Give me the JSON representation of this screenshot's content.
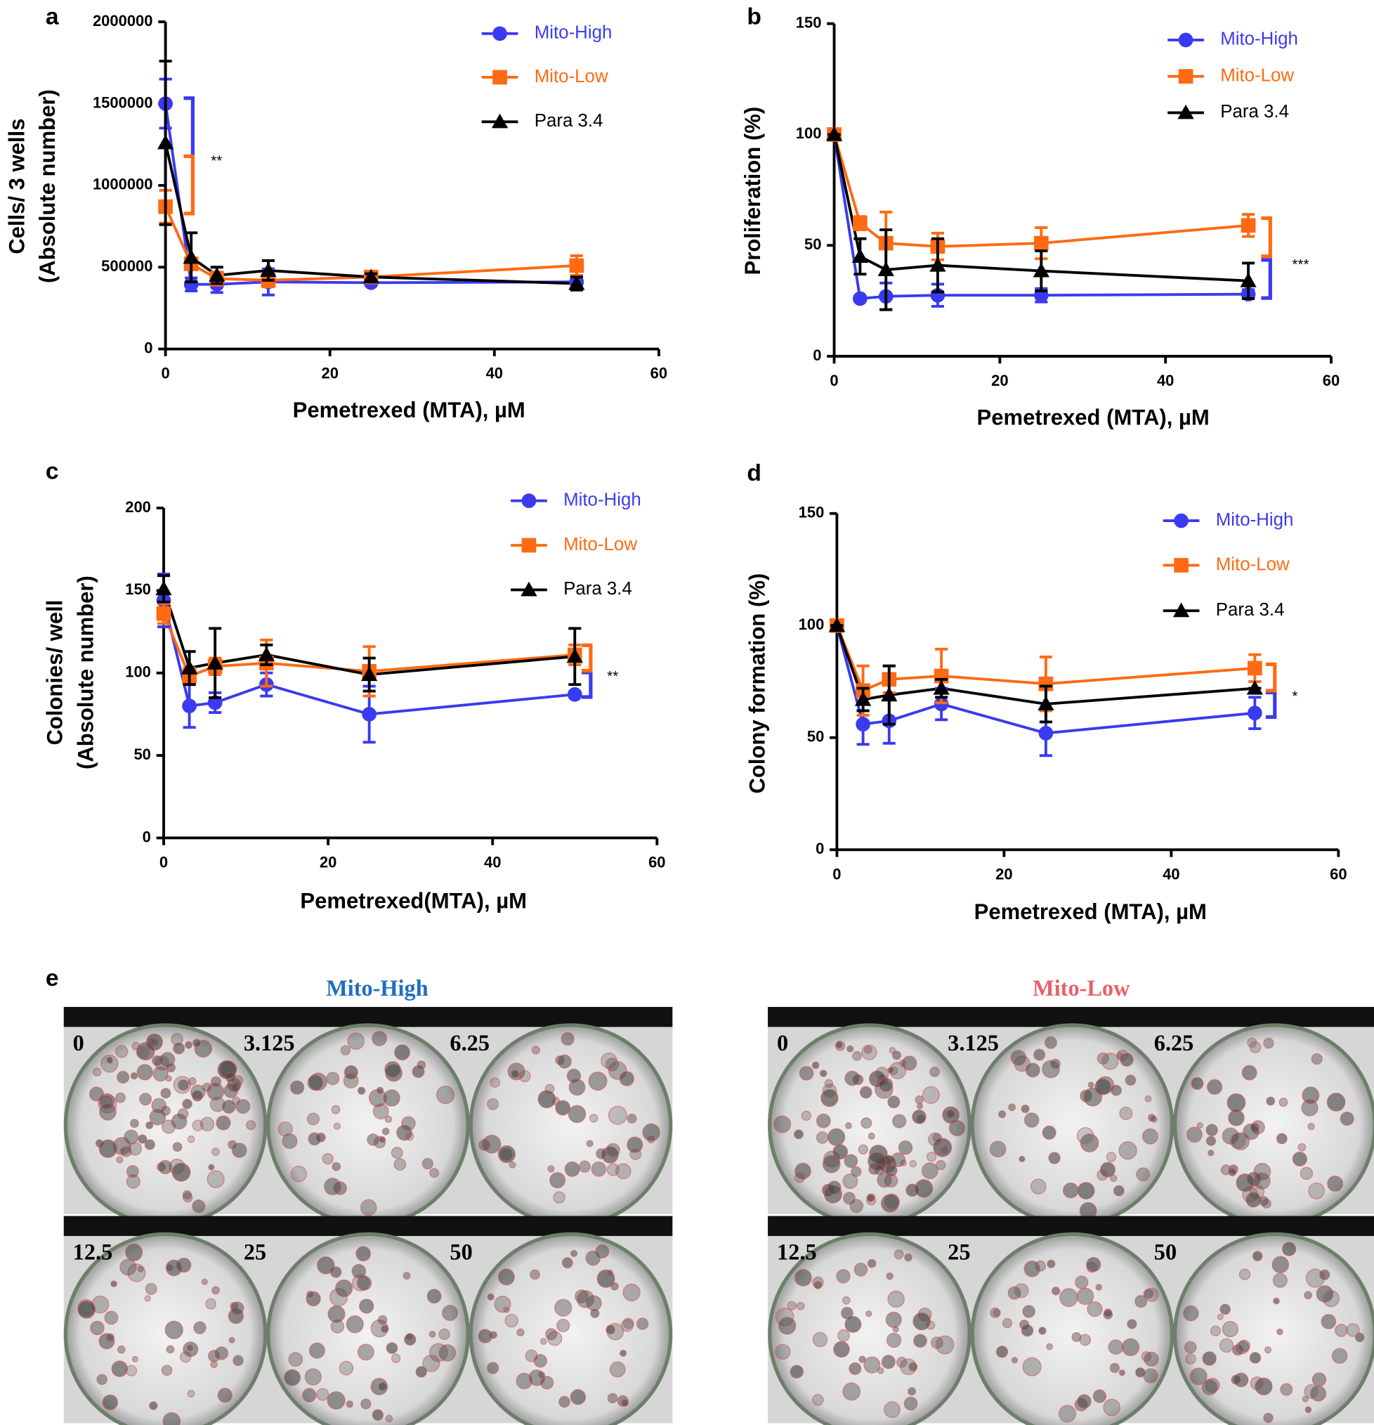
{
  "chart_data": [
    {
      "type": "line",
      "label": "a",
      "ylabel": [
        "Cells/ 3 wells",
        "(Absolute number)"
      ],
      "xlabel": "Pemetrexed (MTA), µM",
      "x": [
        0,
        3.125,
        6.25,
        12.5,
        25,
        50
      ],
      "xlim": [
        0,
        60
      ],
      "xticks": [
        0,
        20,
        40,
        60
      ],
      "ylim": [
        0,
        2000000
      ],
      "yticks": [
        0,
        500000,
        1000000,
        1500000,
        2000000
      ],
      "annotation": "**",
      "series": [
        {
          "name": "Mito-High",
          "color": "#3a3af0",
          "marker": "circle",
          "values": [
            1500000,
            395000,
            395000,
            410000,
            405000,
            410000
          ],
          "errors": [
            150000,
            40000,
            50000,
            80000,
            10000,
            30000
          ]
        },
        {
          "name": "Mito-Low",
          "color": "#ff6a13",
          "marker": "square",
          "values": [
            870000,
            520000,
            430000,
            420000,
            440000,
            510000
          ],
          "errors": [
            100000,
            30000,
            40000,
            40000,
            20000,
            60000
          ]
        },
        {
          "name": "Para 3.4",
          "color": "#000000",
          "marker": "triangle",
          "values": [
            1260000,
            560000,
            450000,
            480000,
            440000,
            400000
          ],
          "errors": [
            500000,
            150000,
            50000,
            60000,
            20000,
            40000
          ]
        }
      ]
    },
    {
      "type": "line",
      "label": "b",
      "ylabel": [
        "Proliferation (%)"
      ],
      "xlabel": "Pemetrexed (MTA), µM",
      "x": [
        0,
        3.125,
        6.25,
        12.5,
        25,
        50
      ],
      "xlim": [
        0,
        60
      ],
      "xticks": [
        0,
        20,
        40,
        60
      ],
      "ylim": [
        0,
        150
      ],
      "yticks": [
        0,
        50,
        100,
        150
      ],
      "annotation": "***",
      "series": [
        {
          "name": "Mito-High",
          "color": "#3a3af0",
          "marker": "circle",
          "values": [
            100,
            26,
            27,
            27.5,
            27.5,
            28
          ],
          "errors": [
            0,
            1,
            6,
            5,
            3,
            2
          ]
        },
        {
          "name": "Mito-Low",
          "color": "#ff6a13",
          "marker": "square",
          "values": [
            100,
            60,
            51,
            49.5,
            51,
            59
          ],
          "errors": [
            2,
            3,
            14,
            6,
            7,
            5
          ]
        },
        {
          "name": "Para 3.4",
          "color": "#000000",
          "marker": "triangle",
          "values": [
            100,
            45,
            39,
            41,
            38.5,
            34
          ],
          "errors": [
            0,
            8,
            18,
            12,
            9,
            8
          ]
        }
      ]
    },
    {
      "type": "line",
      "label": "c",
      "ylabel": [
        "Colonies/ well",
        "(Absolute number)"
      ],
      "xlabel": "Pemetrexed(MTA), µM",
      "x": [
        0,
        3.125,
        6.25,
        12.5,
        25,
        50
      ],
      "xlim": [
        0,
        60
      ],
      "xticks": [
        0,
        20,
        40,
        60
      ],
      "ylim": [
        0,
        200
      ],
      "yticks": [
        0,
        50,
        100,
        150,
        200
      ],
      "annotation": "**",
      "series": [
        {
          "name": "Mito-High",
          "color": "#3a3af0",
          "marker": "circle",
          "values": [
            144,
            80,
            82,
            93,
            75,
            87
          ],
          "errors": [
            16,
            13,
            6,
            7,
            17,
            0
          ]
        },
        {
          "name": "Mito-Low",
          "color": "#ff6a13",
          "marker": "square",
          "values": [
            136,
            98,
            104,
            106,
            101,
            111
          ],
          "errors": [
            6,
            5,
            5,
            14,
            15,
            6
          ]
        },
        {
          "name": "Para 3.4",
          "color": "#000000",
          "marker": "triangle",
          "values": [
            151,
            103,
            106,
            111,
            99,
            110
          ],
          "errors": [
            8,
            10,
            21,
            6,
            10,
            17
          ]
        }
      ]
    },
    {
      "type": "line",
      "label": "d",
      "ylabel": [
        "Colony formation (%)"
      ],
      "xlabel": "Pemetrexed (MTA), µM",
      "x": [
        0,
        3.125,
        6.25,
        12.5,
        25,
        50
      ],
      "xlim": [
        0,
        60
      ],
      "xticks": [
        0,
        20,
        40,
        60
      ],
      "ylim": [
        0,
        150
      ],
      "yticks": [
        0,
        50,
        100,
        150
      ],
      "annotation": "*",
      "series": [
        {
          "name": "Mito-High",
          "color": "#3a3af0",
          "marker": "circle",
          "values": [
            100,
            56,
            57.5,
            65,
            52,
            61
          ],
          "errors": [
            0,
            9,
            10,
            7,
            10,
            7
          ]
        },
        {
          "name": "Mito-Low",
          "color": "#ff6a13",
          "marker": "square",
          "values": [
            100,
            71,
            76,
            77.5,
            74,
            81
          ],
          "errors": [
            1,
            11,
            6,
            12,
            12,
            6
          ]
        },
        {
          "name": "Para 3.4",
          "color": "#000000",
          "marker": "triangle",
          "values": [
            100,
            67,
            69,
            72,
            65,
            72
          ],
          "errors": [
            0,
            5,
            13,
            4,
            8,
            0
          ]
        }
      ]
    }
  ],
  "panel_e": {
    "label": "e",
    "groups": [
      {
        "title": "Mito-High",
        "doses": [
          "0",
          "3.125",
          "6.25",
          "12.5",
          "25",
          "50"
        ]
      },
      {
        "title": "Mito-Low",
        "doses": [
          "0",
          "3.125",
          "6.25",
          "12.5",
          "25",
          "50"
        ]
      }
    ]
  }
}
